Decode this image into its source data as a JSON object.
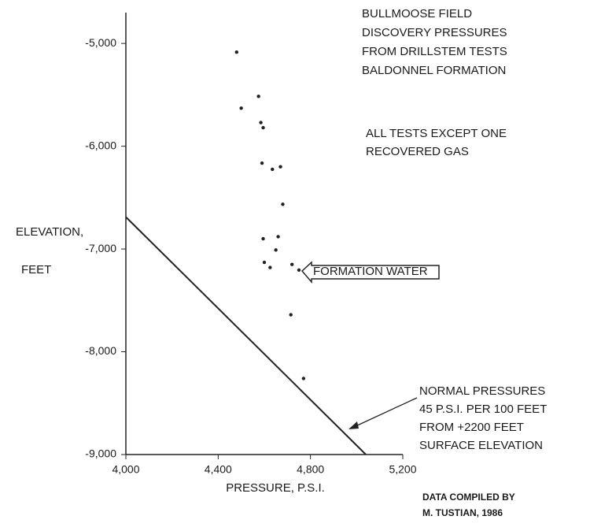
{
  "chart_data": {
    "type": "scatter",
    "title": [
      "BULLMOOSE FIELD",
      "DISCOVERY PRESSURES",
      "FROM DRILLSTEM TESTS",
      "BALDONNEL FORMATION"
    ],
    "notes": [
      {
        "lines": [
          "ALL TESTS EXCEPT ONE",
          "RECOVERED GAS"
        ]
      },
      {
        "lines": [
          "FORMATION WATER"
        ]
      },
      {
        "lines": [
          "NORMAL PRESSURES",
          "45 P.S.I. PER 100 FEET",
          "FROM +2200 FEET",
          "SURFACE ELEVATION"
        ]
      },
      {
        "lines": [
          "DATA COMPILED BY",
          "M. TUSTIAN, 1986"
        ]
      }
    ],
    "x_label": "PRESSURE, P.S.I.",
    "y_label": [
      "ELEVATION,",
      "FEET"
    ],
    "xlim": [
      4000,
      5200
    ],
    "xticks": [
      {
        "value": 4000,
        "label": "4,000"
      },
      {
        "value": 4400,
        "label": "4,400"
      },
      {
        "value": 4800,
        "label": "4,800"
      },
      {
        "value": 5200,
        "label": "5,200"
      }
    ],
    "ylim": [
      -9000,
      -4700
    ],
    "yticks": [
      {
        "value": -9000,
        "label": "-9,000"
      },
      {
        "value": -8000,
        "label": "-8,000"
      },
      {
        "value": -7000,
        "label": "-7,000"
      },
      {
        "value": -6000,
        "label": "-6,000"
      },
      {
        "value": -5000,
        "label": "-5,000"
      }
    ],
    "series": [
      {
        "type": "scatter",
        "color": "#222222",
        "x": [
          4480,
          4500,
          4575,
          4585,
          4595,
          4590,
          4635,
          4670,
          4680,
          4595,
          4660,
          4650,
          4600,
          4625,
          4720,
          4750,
          4715,
          4770
        ],
        "values": [
          -5085,
          -5630,
          -5515,
          -5770,
          -5820,
          -6165,
          -6225,
          -6200,
          -6565,
          -6900,
          -6880,
          -7010,
          -7130,
          -7180,
          -7150,
          -7205,
          -7640,
          -8260
        ]
      },
      {
        "type": "line",
        "color": "#222222",
        "x": [
          4000,
          5040
        ],
        "values": [
          -6689,
          -9000
        ]
      }
    ]
  }
}
